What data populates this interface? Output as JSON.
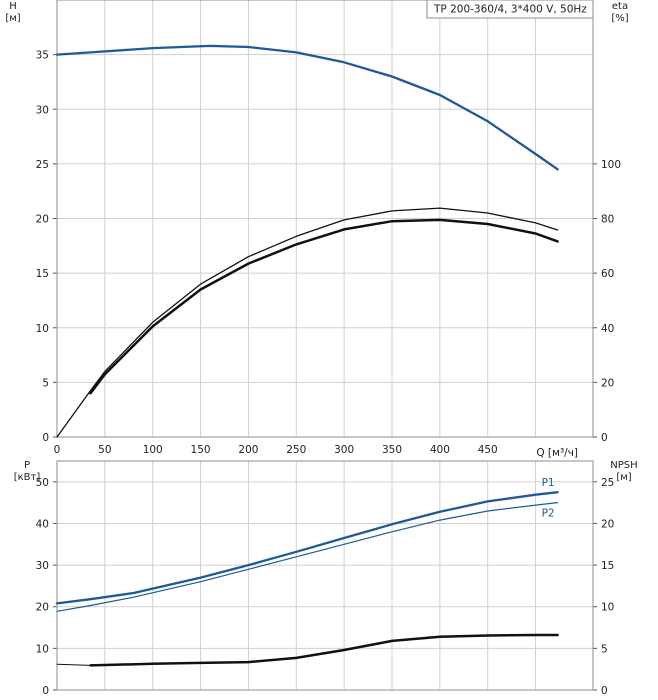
{
  "legend_text": "TP 200-360/4, 3*400 V, 50Hz",
  "chart_data": [
    {
      "type": "line",
      "panel": "upper",
      "xlabel": "Q [м³/ч]",
      "xlim": [
        0,
        560
      ],
      "x_ticks": [
        0,
        50,
        100,
        150,
        200,
        250,
        300,
        350,
        400,
        450
      ],
      "left_axis": {
        "label_line1": "H",
        "label_line2": "[м]",
        "lim": [
          0,
          40
        ],
        "ticks": [
          0,
          5,
          10,
          15,
          20,
          25,
          30,
          35
        ]
      },
      "right_axis": {
        "label_line1": "eta",
        "label_line2": "[%]",
        "lim": [
          0,
          160
        ],
        "ticks": [
          0,
          20,
          40,
          60,
          80,
          100
        ]
      },
      "grid": true,
      "series": [
        {
          "id": "H",
          "axis": "left",
          "color": "#1f5a96",
          "width": 2.3,
          "x": [
            0,
            35,
            100,
            160,
            200,
            250,
            300,
            350,
            400,
            450,
            500,
            523
          ],
          "y": [
            35.0,
            35.2,
            35.6,
            35.8,
            35.7,
            35.2,
            34.3,
            33.0,
            31.3,
            28.9,
            25.9,
            24.5
          ]
        },
        {
          "id": "eta_1",
          "axis": "right",
          "color": "#111111",
          "width": 1.3,
          "x": [
            0,
            35,
            50,
            100,
            150,
            200,
            250,
            300,
            350,
            400,
            450,
            500,
            523
          ],
          "y": [
            0,
            17.0,
            24.0,
            42.0,
            56.0,
            66.0,
            73.5,
            79.5,
            82.8,
            83.8,
            82.0,
            78.4,
            75.8
          ]
        },
        {
          "id": "eta_2",
          "axis": "right",
          "color": "#111111",
          "width": 2.5,
          "x": [
            35,
            50,
            100,
            150,
            200,
            250,
            300,
            350,
            400,
            450,
            500,
            523
          ],
          "y": [
            16.0,
            23.0,
            40.5,
            54.0,
            63.5,
            70.5,
            76.0,
            79.0,
            79.5,
            78.0,
            74.5,
            71.6
          ]
        }
      ]
    },
    {
      "type": "line",
      "panel": "lower",
      "xlim": [
        0,
        560
      ],
      "x_ticks": [
        0,
        50,
        100,
        150,
        200,
        250,
        300,
        350,
        400,
        450
      ],
      "left_axis": {
        "label_line1": "P",
        "label_line2": "[кВт]",
        "lim": [
          0,
          55
        ],
        "ticks": [
          0,
          10,
          20,
          30,
          40,
          50
        ]
      },
      "right_axis": {
        "label_line1": "NPSH",
        "label_line2": "[м]",
        "lim": [
          0,
          27.5
        ],
        "ticks": [
          0,
          5,
          10,
          15,
          20,
          25
        ]
      },
      "grid": true,
      "series": [
        {
          "id": "P1",
          "name": "P1",
          "axis": "left",
          "color": "#1f5a96",
          "width": 2.3,
          "x": [
            0,
            35,
            80,
            150,
            200,
            250,
            300,
            350,
            400,
            450,
            500,
            523
          ],
          "y": [
            20.8,
            21.8,
            23.3,
            27.0,
            30.0,
            33.2,
            36.5,
            39.8,
            42.8,
            45.3,
            46.9,
            47.5
          ]
        },
        {
          "id": "P2",
          "name": "P2",
          "axis": "left",
          "color": "#1f5a96",
          "width": 1.2,
          "x": [
            0,
            35,
            80,
            150,
            200,
            250,
            300,
            350,
            400,
            450,
            500,
            523
          ],
          "y": [
            18.9,
            20.3,
            22.3,
            26.0,
            29.0,
            32.0,
            35.0,
            38.0,
            40.8,
            43.0,
            44.4,
            45.0
          ]
        },
        {
          "id": "NPSH_thin",
          "axis": "right",
          "color": "#111111",
          "width": 1.0,
          "x": [
            0,
            35
          ],
          "y": [
            3.1,
            2.95
          ]
        },
        {
          "id": "NPSH",
          "axis": "right",
          "color": "#111111",
          "width": 2.5,
          "x": [
            35,
            100,
            150,
            200,
            250,
            300,
            350,
            400,
            450,
            500,
            523
          ],
          "y": [
            2.95,
            3.15,
            3.25,
            3.35,
            3.85,
            4.8,
            5.9,
            6.4,
            6.55,
            6.6,
            6.6
          ]
        }
      ]
    }
  ]
}
